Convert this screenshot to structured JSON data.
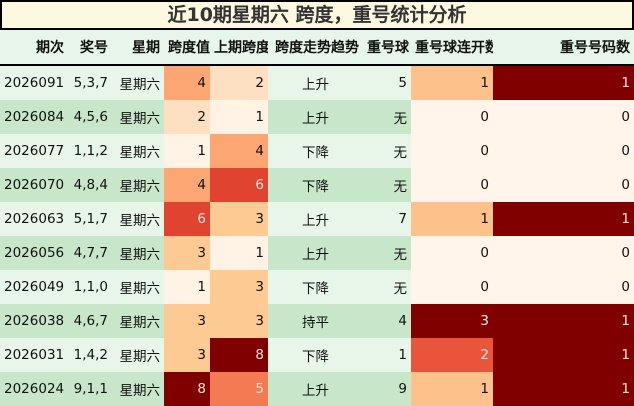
{
  "title": "近10期星期六 跨度，重号统计分析",
  "headers": [
    "期次",
    "奖号",
    "星期",
    "跨度值",
    "上期跨度",
    "跨度走势趋势",
    "重号球",
    "重号球连开数",
    "重号号码数"
  ],
  "colors": {
    "span": {
      "1": "#fff3e6",
      "2": "#fde0c1",
      "3": "#fdca94",
      "4": "#fca673",
      "5": "#f47a52",
      "6": "#e04430",
      "8": "#800000"
    },
    "consec": {
      "0": "#fff5eb",
      "1": "#fdc28b",
      "2": "#e8553a",
      "3": "#800000"
    },
    "count": {
      "0": "#fff5eb",
      "1": "#800000"
    }
  },
  "rows": [
    {
      "period": "2026091",
      "numbers": "5,3,7",
      "weekday": "星期六",
      "span": "4",
      "prev_span": "2",
      "trend": "上升",
      "repeat": "5",
      "consec": "1",
      "count": "1"
    },
    {
      "period": "2026084",
      "numbers": "4,5,6",
      "weekday": "星期六",
      "span": "2",
      "prev_span": "1",
      "trend": "上升",
      "repeat": "无",
      "consec": "0",
      "count": "0"
    },
    {
      "period": "2026077",
      "numbers": "1,1,2",
      "weekday": "星期六",
      "span": "1",
      "prev_span": "4",
      "trend": "下降",
      "repeat": "无",
      "consec": "0",
      "count": "0"
    },
    {
      "period": "2026070",
      "numbers": "4,8,4",
      "weekday": "星期六",
      "span": "4",
      "prev_span": "6",
      "trend": "下降",
      "repeat": "无",
      "consec": "0",
      "count": "0"
    },
    {
      "period": "2026063",
      "numbers": "5,1,7",
      "weekday": "星期六",
      "span": "6",
      "prev_span": "3",
      "trend": "上升",
      "repeat": "7",
      "consec": "1",
      "count": "1"
    },
    {
      "period": "2026056",
      "numbers": "4,7,7",
      "weekday": "星期六",
      "span": "3",
      "prev_span": "1",
      "trend": "上升",
      "repeat": "无",
      "consec": "0",
      "count": "0"
    },
    {
      "period": "2026049",
      "numbers": "1,1,0",
      "weekday": "星期六",
      "span": "1",
      "prev_span": "3",
      "trend": "下降",
      "repeat": "无",
      "consec": "0",
      "count": "0"
    },
    {
      "period": "2026038",
      "numbers": "4,6,7",
      "weekday": "星期六",
      "span": "3",
      "prev_span": "3",
      "trend": "持平",
      "repeat": "4",
      "consec": "3",
      "count": "1"
    },
    {
      "period": "2026031",
      "numbers": "1,4,2",
      "weekday": "星期六",
      "span": "3",
      "prev_span": "8",
      "trend": "下降",
      "repeat": "1",
      "consec": "2",
      "count": "1"
    },
    {
      "period": "2026024",
      "numbers": "9,1,1",
      "weekday": "星期六",
      "span": "8",
      "prev_span": "5",
      "trend": "上升",
      "repeat": "9",
      "consec": "1",
      "count": "1"
    }
  ]
}
